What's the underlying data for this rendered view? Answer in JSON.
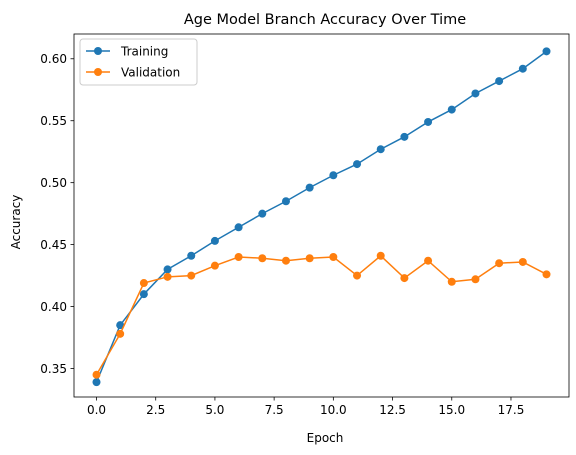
{
  "chart_data": {
    "type": "line",
    "title": "Age Model Branch Accuracy Over Time",
    "xlabel": "Epoch",
    "ylabel": "Accuracy",
    "xlim": [
      -0.95,
      19.95
    ],
    "ylim": [
      0.327,
      0.62
    ],
    "xticks": [
      0.0,
      2.5,
      5.0,
      7.5,
      10.0,
      12.5,
      15.0,
      17.5
    ],
    "xtick_labels": [
      "0.0",
      "2.5",
      "5.0",
      "7.5",
      "10.0",
      "12.5",
      "15.0",
      "17.5"
    ],
    "yticks": [
      0.35,
      0.4,
      0.45,
      0.5,
      0.55,
      0.6
    ],
    "ytick_labels": [
      "0.35",
      "0.40",
      "0.45",
      "0.50",
      "0.55",
      "0.60"
    ],
    "grid": false,
    "legend_position": "top-left",
    "x": [
      0,
      1,
      2,
      3,
      4,
      5,
      6,
      7,
      8,
      9,
      10,
      11,
      12,
      13,
      14,
      15,
      16,
      17,
      18,
      19
    ],
    "series": [
      {
        "name": "Training",
        "color": "#1f77b4",
        "values": [
          0.339,
          0.385,
          0.41,
          0.43,
          0.441,
          0.453,
          0.464,
          0.475,
          0.485,
          0.496,
          0.506,
          0.515,
          0.527,
          0.537,
          0.549,
          0.559,
          0.572,
          0.582,
          0.592,
          0.606
        ]
      },
      {
        "name": "Validation",
        "color": "#ff7f0e",
        "values": [
          0.345,
          0.378,
          0.419,
          0.424,
          0.425,
          0.433,
          0.44,
          0.439,
          0.437,
          0.439,
          0.44,
          0.425,
          0.441,
          0.423,
          0.437,
          0.42,
          0.422,
          0.435,
          0.436,
          0.426
        ]
      }
    ]
  }
}
